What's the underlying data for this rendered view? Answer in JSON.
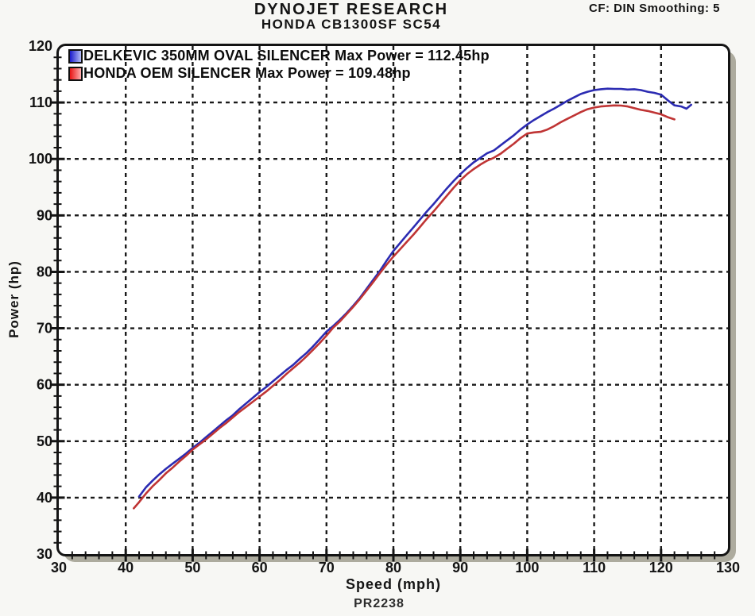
{
  "header": {
    "title": "DYNOJET RESEARCH",
    "subtitle": "HONDA CB1300SF SC54",
    "cf_info": "CF: DIN  Smoothing: 5"
  },
  "footer": {
    "run_id": "PR2238"
  },
  "chart_data": {
    "type": "line",
    "title": "DYNOJET RESEARCH",
    "subtitle": "HONDA CB1300SF SC54",
    "xlabel": "Speed (mph)",
    "ylabel": "Power (hp)",
    "xlim": [
      30,
      130
    ],
    "ylim": [
      30,
      120
    ],
    "x_major_ticks": [
      30,
      40,
      50,
      60,
      70,
      80,
      90,
      100,
      110,
      120,
      130
    ],
    "y_major_ticks": [
      30,
      40,
      50,
      60,
      70,
      80,
      90,
      100,
      110,
      120
    ],
    "minor_tick_step": 2,
    "grid": "black dashed lines at every major tick",
    "grid_color": "#1a1a1a",
    "legend_position": "top-left inside plot",
    "series": [
      {
        "name": "DELKEVIC 350MM OVAL SILENCER",
        "legend": "DELKEVIC 350MM OVAL SILENCER Max Power = 112.45hp",
        "max_power_hp": 112.45,
        "color": "#2b2bb2",
        "swatch_gradient": [
          "#1a1acc",
          "#b4bef6"
        ],
        "points": [
          [
            42,
            40.2
          ],
          [
            43,
            41.8
          ],
          [
            44,
            43.0
          ],
          [
            45,
            44.1
          ],
          [
            46,
            45.1
          ],
          [
            47,
            46.0
          ],
          [
            48,
            46.9
          ],
          [
            49,
            47.8
          ],
          [
            50,
            48.8
          ],
          [
            51,
            49.7
          ],
          [
            52,
            50.7
          ],
          [
            53,
            51.7
          ],
          [
            54,
            52.7
          ],
          [
            55,
            53.7
          ],
          [
            56,
            54.6
          ],
          [
            57,
            55.7
          ],
          [
            58,
            56.7
          ],
          [
            59,
            57.7
          ],
          [
            60,
            58.7
          ],
          [
            61,
            59.6
          ],
          [
            62,
            60.6
          ],
          [
            63,
            61.6
          ],
          [
            64,
            62.6
          ],
          [
            65,
            63.5
          ],
          [
            66,
            64.6
          ],
          [
            67,
            65.6
          ],
          [
            68,
            66.8
          ],
          [
            69,
            68.1
          ],
          [
            70,
            69.4
          ],
          [
            71,
            70.4
          ],
          [
            72,
            71.5
          ],
          [
            73,
            72.7
          ],
          [
            74,
            74.0
          ],
          [
            75,
            75.4
          ],
          [
            76,
            77.0
          ],
          [
            77,
            78.6
          ],
          [
            78,
            80.2
          ],
          [
            79,
            82.0
          ],
          [
            80,
            83.7
          ],
          [
            81,
            85.1
          ],
          [
            82,
            86.5
          ],
          [
            83,
            87.9
          ],
          [
            84,
            89.3
          ],
          [
            85,
            90.7
          ],
          [
            86,
            92.0
          ],
          [
            87,
            93.4
          ],
          [
            88,
            94.8
          ],
          [
            89,
            96.1
          ],
          [
            90,
            97.3
          ],
          [
            91,
            98.4
          ],
          [
            92,
            99.4
          ],
          [
            93,
            100.2
          ],
          [
            94,
            101.0
          ],
          [
            95,
            101.5
          ],
          [
            96,
            102.4
          ],
          [
            97,
            103.3
          ],
          [
            98,
            104.2
          ],
          [
            99,
            105.2
          ],
          [
            100,
            106.1
          ],
          [
            101,
            106.9
          ],
          [
            102,
            107.6
          ],
          [
            103,
            108.3
          ],
          [
            104,
            108.9
          ],
          [
            105,
            109.6
          ],
          [
            106,
            110.3
          ],
          [
            107,
            110.9
          ],
          [
            108,
            111.5
          ],
          [
            109,
            111.9
          ],
          [
            110,
            112.2
          ],
          [
            111,
            112.35
          ],
          [
            112,
            112.45
          ],
          [
            113,
            112.4
          ],
          [
            114,
            112.4
          ],
          [
            115,
            112.3
          ],
          [
            116,
            112.35
          ],
          [
            117,
            112.2
          ],
          [
            118,
            111.9
          ],
          [
            119,
            111.7
          ],
          [
            120,
            111.4
          ],
          [
            121,
            110.4
          ],
          [
            122,
            109.5
          ],
          [
            123,
            109.3
          ],
          [
            123.8,
            108.9
          ],
          [
            124.5,
            109.6
          ]
        ]
      },
      {
        "name": "HONDA OEM SILENCER",
        "legend": "HONDA OEM SILENCER Max Power = 109.48hp",
        "max_power_hp": 109.48,
        "color": "#bf3434",
        "swatch_gradient": [
          "#e81414",
          "#ffb0b0"
        ],
        "points": [
          [
            41.2,
            38.1
          ],
          [
            42,
            39.2
          ],
          [
            43,
            40.7
          ],
          [
            44,
            42.0
          ],
          [
            45,
            43.1
          ],
          [
            46,
            44.3
          ],
          [
            47,
            45.3
          ],
          [
            48,
            46.4
          ],
          [
            49,
            47.4
          ],
          [
            50,
            48.5
          ],
          [
            51,
            49.4
          ],
          [
            52,
            50.3
          ],
          [
            53,
            51.3
          ],
          [
            54,
            52.3
          ],
          [
            55,
            53.2
          ],
          [
            56,
            54.2
          ],
          [
            57,
            55.2
          ],
          [
            58,
            56.1
          ],
          [
            59,
            57.0
          ],
          [
            60,
            57.9
          ],
          [
            61,
            58.8
          ],
          [
            62,
            59.8
          ],
          [
            63,
            60.8
          ],
          [
            64,
            61.9
          ],
          [
            65,
            62.9
          ],
          [
            66,
            63.9
          ],
          [
            67,
            65.0
          ],
          [
            68,
            66.2
          ],
          [
            69,
            67.4
          ],
          [
            70,
            68.7
          ],
          [
            71,
            70.1
          ],
          [
            72,
            71.2
          ],
          [
            73,
            72.5
          ],
          [
            74,
            73.8
          ],
          [
            75,
            75.2
          ],
          [
            76,
            76.7
          ],
          [
            77,
            78.2
          ],
          [
            78,
            79.8
          ],
          [
            79,
            81.3
          ],
          [
            80,
            82.7
          ],
          [
            81,
            84.0
          ],
          [
            82,
            85.3
          ],
          [
            83,
            86.6
          ],
          [
            84,
            88.0
          ],
          [
            85,
            89.4
          ],
          [
            86,
            90.7
          ],
          [
            87,
            92.1
          ],
          [
            88,
            93.5
          ],
          [
            89,
            94.9
          ],
          [
            90,
            96.2
          ],
          [
            91,
            97.3
          ],
          [
            92,
            98.2
          ],
          [
            93,
            99.0
          ],
          [
            94,
            99.7
          ],
          [
            95,
            100.2
          ],
          [
            96,
            100.9
          ],
          [
            97,
            101.8
          ],
          [
            98,
            102.7
          ],
          [
            99,
            103.7
          ],
          [
            100,
            104.5
          ],
          [
            101,
            104.7
          ],
          [
            102,
            104.8
          ],
          [
            103,
            105.2
          ],
          [
            104,
            105.8
          ],
          [
            105,
            106.5
          ],
          [
            106,
            107.1
          ],
          [
            107,
            107.7
          ],
          [
            108,
            108.3
          ],
          [
            109,
            108.8
          ],
          [
            110,
            109.1
          ],
          [
            111,
            109.3
          ],
          [
            112,
            109.4
          ],
          [
            113,
            109.48
          ],
          [
            114,
            109.45
          ],
          [
            115,
            109.3
          ],
          [
            116,
            109.0
          ],
          [
            117,
            108.7
          ],
          [
            118,
            108.5
          ],
          [
            119,
            108.2
          ],
          [
            120,
            107.9
          ],
          [
            121,
            107.4
          ],
          [
            122,
            107.0
          ]
        ]
      }
    ]
  }
}
